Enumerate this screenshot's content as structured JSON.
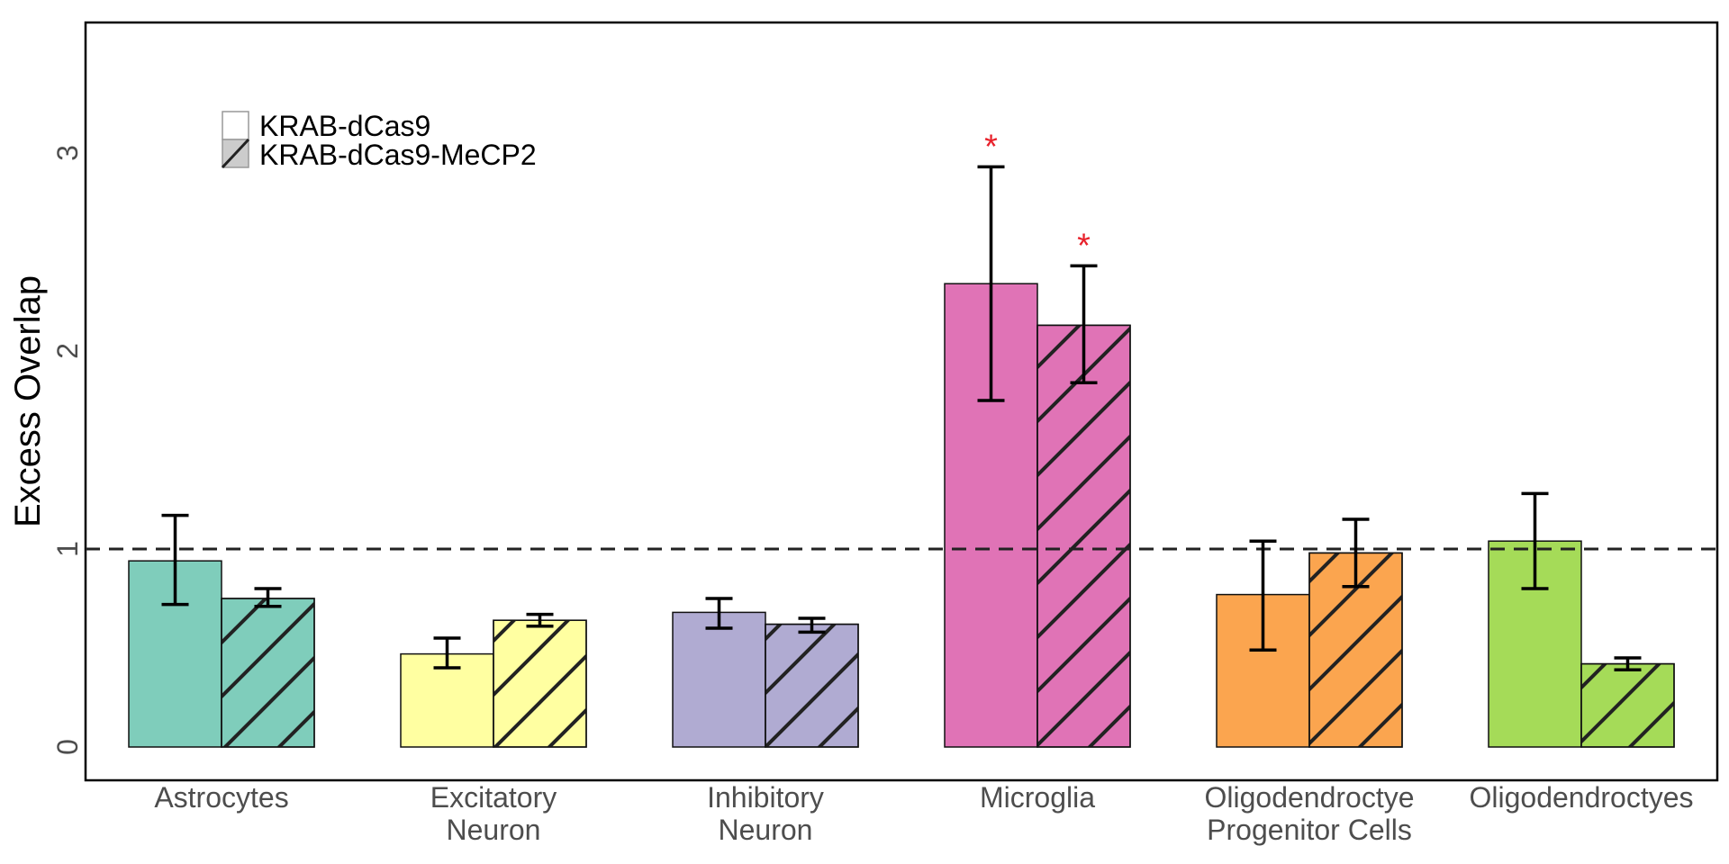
{
  "chart_data": {
    "type": "bar",
    "title": "",
    "xlabel": "",
    "ylabel": "Excess Overlap",
    "ylim": [
      -0.17,
      3.7
    ],
    "yticks": [
      0,
      1,
      2,
      3
    ],
    "reference_line": 1,
    "grid": false,
    "legend_position": "top-left",
    "categories": [
      {
        "lines": [
          "Astrocytes"
        ],
        "color": "#7fcdbb"
      },
      {
        "lines": [
          "Excitatory",
          "Neuron"
        ],
        "color": "#ffffa1"
      },
      {
        "lines": [
          "Inhibitory",
          "Neuron"
        ],
        "color": "#b0abd2"
      },
      {
        "lines": [
          "Microglia"
        ],
        "color": "#e073b6"
      },
      {
        "lines": [
          "Oligodendroctye",
          "Progenitor Cells"
        ],
        "color": "#fba54f"
      },
      {
        "lines": [
          "Oligodendroctyes"
        ],
        "color": "#a5db58"
      }
    ],
    "series": [
      {
        "name": "KRAB-dCas9",
        "pattern": "solid",
        "values": [
          0.94,
          0.47,
          0.68,
          2.34,
          0.77,
          1.04
        ],
        "error_low": [
          0.72,
          0.4,
          0.6,
          1.75,
          0.49,
          0.8
        ],
        "error_high": [
          1.17,
          0.55,
          0.75,
          2.93,
          1.04,
          1.28
        ],
        "significant": [
          false,
          false,
          false,
          true,
          false,
          false
        ]
      },
      {
        "name": "KRAB-dCas9-MeCP2",
        "pattern": "hatched",
        "values": [
          0.75,
          0.64,
          0.62,
          2.13,
          0.98,
          0.42
        ],
        "error_low": [
          0.71,
          0.61,
          0.58,
          1.84,
          0.81,
          0.39
        ],
        "error_high": [
          0.8,
          0.67,
          0.65,
          2.43,
          1.15,
          0.45
        ],
        "significant": [
          false,
          false,
          false,
          true,
          false,
          false
        ]
      }
    ],
    "significance_marker": "*",
    "significance_color": "#e8212b"
  }
}
